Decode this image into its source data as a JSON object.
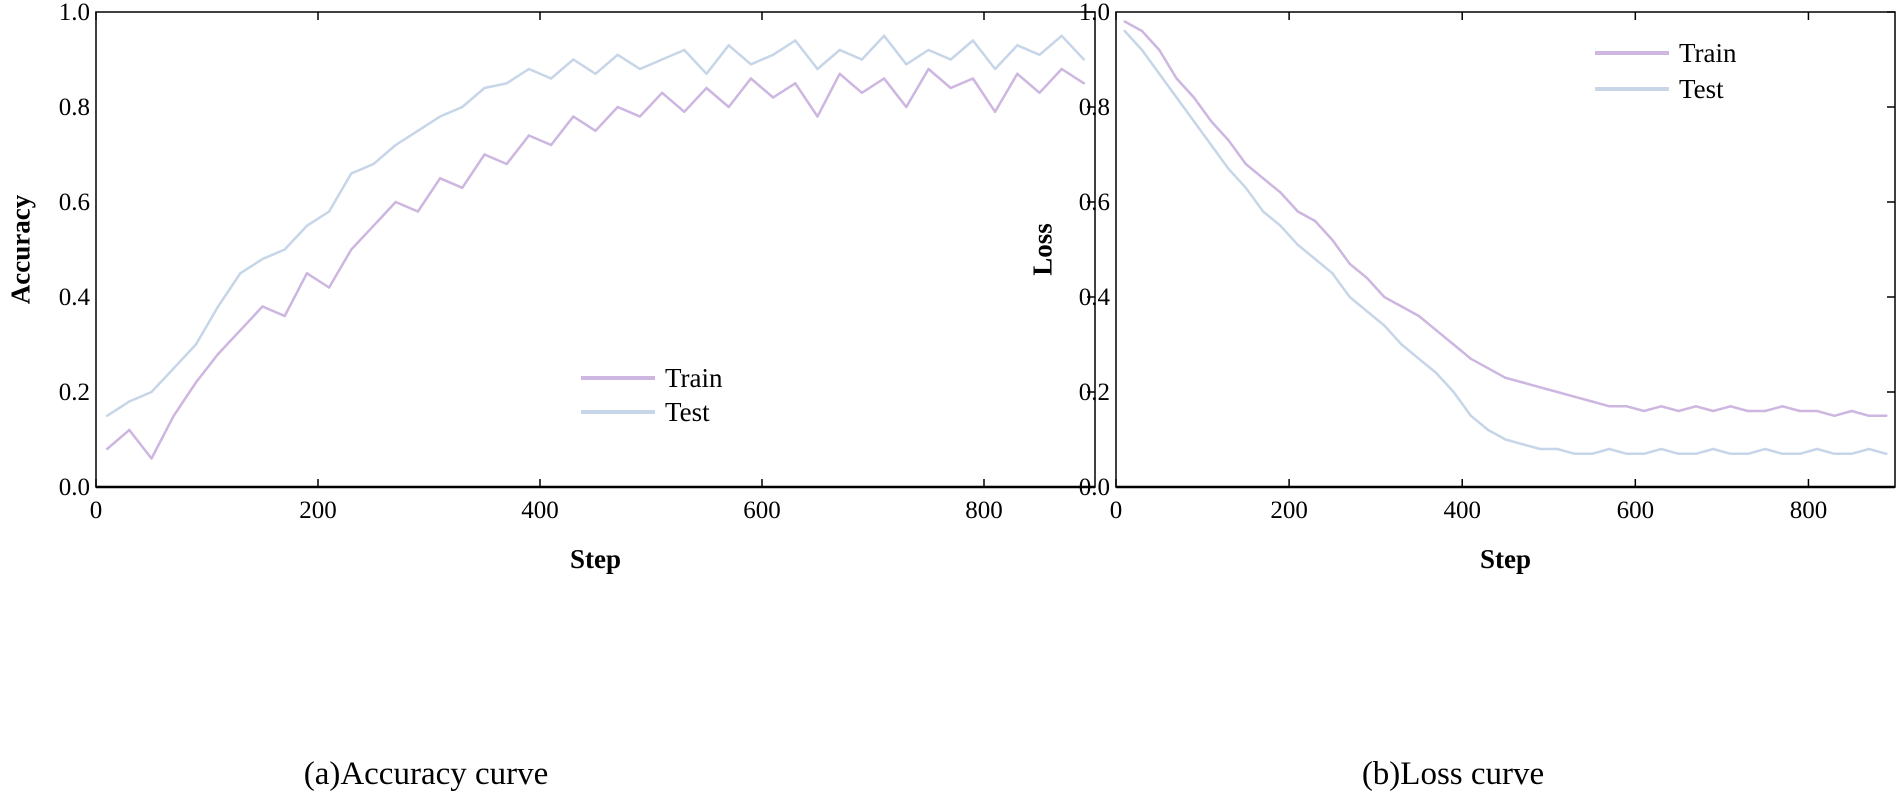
{
  "colors": {
    "train": "#cdb6e0",
    "test": "#c6d6e8",
    "axis": "#000000"
  },
  "chart_data": [
    {
      "type": "line",
      "caption": "(a)Accuracy curve",
      "xlabel": "Step",
      "ylabel": "Accuracy",
      "xlim": [
        0,
        900
      ],
      "ylim": [
        0,
        1
      ],
      "xticks": [
        "0",
        "200",
        "400",
        "600",
        "800"
      ],
      "yticks": [
        "0.0",
        "0.2",
        "0.4",
        "0.6",
        "0.8",
        "1.0"
      ],
      "legend": "lower-right",
      "x": [
        10,
        30,
        50,
        70,
        90,
        110,
        130,
        150,
        170,
        190,
        210,
        230,
        250,
        270,
        290,
        310,
        330,
        350,
        370,
        390,
        410,
        430,
        450,
        470,
        490,
        510,
        530,
        550,
        570,
        590,
        610,
        630,
        650,
        670,
        690,
        710,
        730,
        750,
        770,
        790,
        810,
        830,
        850,
        870,
        890
      ],
      "series": [
        {
          "name": "Train",
          "values": [
            0.08,
            0.12,
            0.06,
            0.15,
            0.22,
            0.28,
            0.33,
            0.38,
            0.36,
            0.45,
            0.42,
            0.5,
            0.55,
            0.6,
            0.58,
            0.65,
            0.63,
            0.7,
            0.68,
            0.74,
            0.72,
            0.78,
            0.75,
            0.8,
            0.78,
            0.83,
            0.79,
            0.84,
            0.8,
            0.86,
            0.82,
            0.85,
            0.78,
            0.87,
            0.83,
            0.86,
            0.8,
            0.88,
            0.84,
            0.86,
            0.79,
            0.87,
            0.83,
            0.88,
            0.85
          ]
        },
        {
          "name": "Test",
          "values": [
            0.15,
            0.18,
            0.2,
            0.25,
            0.3,
            0.38,
            0.45,
            0.48,
            0.5,
            0.55,
            0.58,
            0.66,
            0.68,
            0.72,
            0.75,
            0.78,
            0.8,
            0.84,
            0.85,
            0.88,
            0.86,
            0.9,
            0.87,
            0.91,
            0.88,
            0.9,
            0.92,
            0.87,
            0.93,
            0.89,
            0.91,
            0.94,
            0.88,
            0.92,
            0.9,
            0.95,
            0.89,
            0.92,
            0.9,
            0.94,
            0.88,
            0.93,
            0.91,
            0.95,
            0.9
          ]
        }
      ]
    },
    {
      "type": "line",
      "caption": "(b)Loss curve",
      "xlabel": "Step",
      "ylabel": "Loss",
      "xlim": [
        0,
        900
      ],
      "ylim": [
        0,
        1
      ],
      "xticks": [
        "0",
        "200",
        "400",
        "600",
        "800"
      ],
      "yticks": [
        "0.0",
        "0.2",
        "0.4",
        "0.6",
        "0.8",
        "1.0"
      ],
      "legend": "upper-right",
      "x": [
        10,
        30,
        50,
        70,
        90,
        110,
        130,
        150,
        170,
        190,
        210,
        230,
        250,
        270,
        290,
        310,
        330,
        350,
        370,
        390,
        410,
        430,
        450,
        470,
        490,
        510,
        530,
        550,
        570,
        590,
        610,
        630,
        650,
        670,
        690,
        710,
        730,
        750,
        770,
        790,
        810,
        830,
        850,
        870,
        890
      ],
      "series": [
        {
          "name": "Train",
          "values": [
            0.98,
            0.96,
            0.92,
            0.86,
            0.82,
            0.77,
            0.73,
            0.68,
            0.65,
            0.62,
            0.58,
            0.56,
            0.52,
            0.47,
            0.44,
            0.4,
            0.38,
            0.36,
            0.33,
            0.3,
            0.27,
            0.25,
            0.23,
            0.22,
            0.21,
            0.2,
            0.19,
            0.18,
            0.17,
            0.17,
            0.16,
            0.17,
            0.16,
            0.17,
            0.16,
            0.17,
            0.16,
            0.16,
            0.17,
            0.16,
            0.16,
            0.15,
            0.16,
            0.15,
            0.15
          ]
        },
        {
          "name": "Test",
          "values": [
            0.96,
            0.92,
            0.87,
            0.82,
            0.77,
            0.72,
            0.67,
            0.63,
            0.58,
            0.55,
            0.51,
            0.48,
            0.45,
            0.4,
            0.37,
            0.34,
            0.3,
            0.27,
            0.24,
            0.2,
            0.15,
            0.12,
            0.1,
            0.09,
            0.08,
            0.08,
            0.07,
            0.07,
            0.08,
            0.07,
            0.07,
            0.08,
            0.07,
            0.07,
            0.08,
            0.07,
            0.07,
            0.08,
            0.07,
            0.07,
            0.08,
            0.07,
            0.07,
            0.08,
            0.07
          ]
        }
      ]
    }
  ]
}
